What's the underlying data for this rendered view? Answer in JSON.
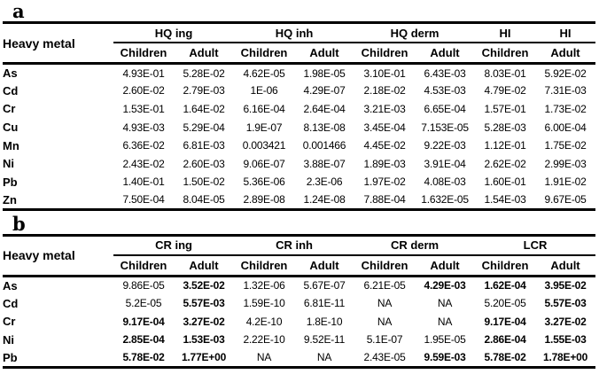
{
  "page": {
    "background_color": "#ffffff",
    "text_color": "#000000",
    "rule_color": "#000000"
  },
  "tables": [
    {
      "panel_label": "a",
      "row_header": "Heavy metal",
      "column_groups": [
        {
          "label": "HQ ing",
          "subcolumns": [
            "Children",
            "Adult"
          ]
        },
        {
          "label": "HQ inh",
          "subcolumns": [
            "Children",
            "Adult"
          ]
        },
        {
          "label": "HQ derm",
          "subcolumns": [
            "Children",
            "Adult"
          ]
        },
        {
          "label": "HI",
          "subcolumns": [
            "Children"
          ]
        },
        {
          "label": "HI",
          "subcolumns": [
            "Adult"
          ]
        }
      ],
      "rows": [
        {
          "metal": "As",
          "cells": [
            {
              "v": "4.93E-01"
            },
            {
              "v": "5.28E-02"
            },
            {
              "v": "4.62E-05"
            },
            {
              "v": "1.98E-05"
            },
            {
              "v": "3.10E-01"
            },
            {
              "v": "6.43E-03"
            },
            {
              "v": "8.03E-01"
            },
            {
              "v": "5.92E-02"
            }
          ]
        },
        {
          "metal": "Cd",
          "cells": [
            {
              "v": "2.60E-02"
            },
            {
              "v": "2.79E-03"
            },
            {
              "v": "1E-06"
            },
            {
              "v": "4.29E-07"
            },
            {
              "v": "2.18E-02"
            },
            {
              "v": "4.53E-03"
            },
            {
              "v": "4.79E-02"
            },
            {
              "v": "7.31E-03"
            }
          ]
        },
        {
          "metal": "Cr",
          "cells": [
            {
              "v": "1.53E-01"
            },
            {
              "v": "1.64E-02"
            },
            {
              "v": "6.16E-04"
            },
            {
              "v": "2.64E-04"
            },
            {
              "v": "3.21E-03"
            },
            {
              "v": "6.65E-04"
            },
            {
              "v": "1.57E-01"
            },
            {
              "v": "1.73E-02"
            }
          ]
        },
        {
          "metal": "Cu",
          "cells": [
            {
              "v": "4.93E-03"
            },
            {
              "v": "5.29E-04"
            },
            {
              "v": "1.9E-07"
            },
            {
              "v": "8.13E-08"
            },
            {
              "v": "3.45E-04"
            },
            {
              "v": "7.153E-05"
            },
            {
              "v": "5.28E-03"
            },
            {
              "v": "6.00E-04"
            }
          ]
        },
        {
          "metal": "Mn",
          "cells": [
            {
              "v": "6.36E-02"
            },
            {
              "v": "6.81E-03"
            },
            {
              "v": "0.003421"
            },
            {
              "v": "0.001466"
            },
            {
              "v": "4.45E-02"
            },
            {
              "v": "9.22E-03"
            },
            {
              "v": "1.12E-01"
            },
            {
              "v": "1.75E-02"
            }
          ]
        },
        {
          "metal": "Ni",
          "cells": [
            {
              "v": "2.43E-02"
            },
            {
              "v": "2.60E-03"
            },
            {
              "v": "9.06E-07"
            },
            {
              "v": "3.88E-07"
            },
            {
              "v": "1.89E-03"
            },
            {
              "v": "3.91E-04"
            },
            {
              "v": "2.62E-02"
            },
            {
              "v": "2.99E-03"
            }
          ]
        },
        {
          "metal": "Pb",
          "cells": [
            {
              "v": "1.40E-01"
            },
            {
              "v": "1.50E-02"
            },
            {
              "v": "5.36E-06"
            },
            {
              "v": "2.3E-06"
            },
            {
              "v": "1.97E-02"
            },
            {
              "v": "4.08E-03"
            },
            {
              "v": "1.60E-01"
            },
            {
              "v": "1.91E-02"
            }
          ]
        },
        {
          "metal": "Zn",
          "cells": [
            {
              "v": "7.50E-04"
            },
            {
              "v": "8.04E-05"
            },
            {
              "v": "2.89E-08"
            },
            {
              "v": "1.24E-08"
            },
            {
              "v": "7.88E-04"
            },
            {
              "v": "1.632E-05"
            },
            {
              "v": "1.54E-03"
            },
            {
              "v": "9.67E-05"
            }
          ]
        }
      ]
    },
    {
      "panel_label": "b",
      "row_header": "Heavy metal",
      "column_groups": [
        {
          "label": "CR ing",
          "subcolumns": [
            "Children",
            "Adult"
          ]
        },
        {
          "label": "CR inh",
          "subcolumns": [
            "Children",
            "Adult"
          ]
        },
        {
          "label": "CR derm",
          "subcolumns": [
            "Children",
            "Adult"
          ]
        },
        {
          "label": "LCR",
          "subcolumns": [
            "Children",
            "Adult"
          ]
        }
      ],
      "rows": [
        {
          "metal": "As",
          "cells": [
            {
              "v": "9.86E-05"
            },
            {
              "v": "3.52E-02",
              "b": true
            },
            {
              "v": "1.32E-06"
            },
            {
              "v": "5.67E-07"
            },
            {
              "v": "6.21E-05"
            },
            {
              "v": "4.29E-03",
              "b": true
            },
            {
              "v": "1.62E-04",
              "b": true
            },
            {
              "v": "3.95E-02",
              "b": true
            }
          ]
        },
        {
          "metal": "Cd",
          "cells": [
            {
              "v": "5.2E-05"
            },
            {
              "v": "5.57E-03",
              "b": true
            },
            {
              "v": "1.59E-10"
            },
            {
              "v": "6.81E-11"
            },
            {
              "v": "NA"
            },
            {
              "v": "NA"
            },
            {
              "v": "5.20E-05"
            },
            {
              "v": "5.57E-03",
              "b": true
            }
          ]
        },
        {
          "metal": "Cr",
          "cells": [
            {
              "v": "9.17E-04",
              "b": true
            },
            {
              "v": "3.27E-02",
              "b": true
            },
            {
              "v": "4.2E-10"
            },
            {
              "v": "1.8E-10"
            },
            {
              "v": "NA"
            },
            {
              "v": "NA"
            },
            {
              "v": "9.17E-04",
              "b": true
            },
            {
              "v": "3.27E-02",
              "b": true
            }
          ]
        },
        {
          "metal": "Ni",
          "cells": [
            {
              "v": "2.85E-04",
              "b": true
            },
            {
              "v": "1.53E-03",
              "b": true
            },
            {
              "v": "2.22E-10"
            },
            {
              "v": "9.52E-11"
            },
            {
              "v": "5.1E-07"
            },
            {
              "v": "1.95E-05"
            },
            {
              "v": "2.86E-04",
              "b": true
            },
            {
              "v": "1.55E-03",
              "b": true
            }
          ]
        },
        {
          "metal": "Pb",
          "cells": [
            {
              "v": "5.78E-02",
              "b": true
            },
            {
              "v": "1.77E+00",
              "b": true
            },
            {
              "v": "NA"
            },
            {
              "v": "NA"
            },
            {
              "v": "2.43E-05"
            },
            {
              "v": "9.59E-03",
              "b": true
            },
            {
              "v": "5.78E-02",
              "b": true
            },
            {
              "v": "1.78E+00",
              "b": true
            }
          ]
        }
      ]
    }
  ]
}
